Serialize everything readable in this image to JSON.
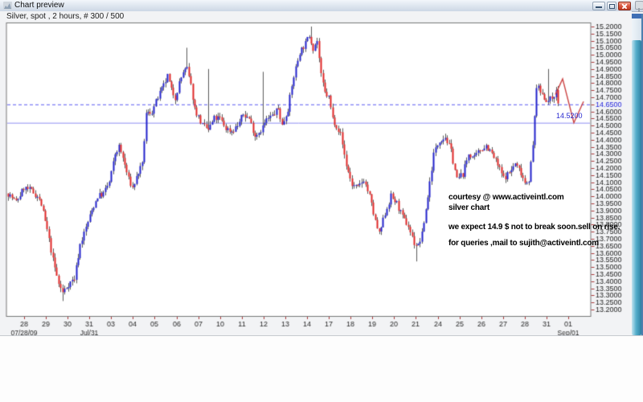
{
  "window": {
    "title": "Chart preview",
    "buttons": {
      "minimize": "minimize",
      "maximize": "maximize",
      "close": "close"
    }
  },
  "header": {
    "instrument_label": "Silver, spot , 2 hours, # 300 / 500"
  },
  "annotation": {
    "line1": "courtesy @ www.activeintl.com",
    "line2": "silver chart",
    "line3": "we expect 14.9 $ not to break soon.sell on rise.",
    "line4": "for queries ,mail to sujith@activeintl.com"
  },
  "chart_data": {
    "type": "candlestick",
    "title": "Silver, spot , 2 hours, # 300 / 500",
    "instrument": "Silver spot",
    "timeframe": "2 hours",
    "bars_counter": "# 300 / 500",
    "ylim": [
      13.2,
      15.2
    ],
    "y_tick_step": 0.05,
    "y_ticks": [
      "15.2000",
      "15.1500",
      "15.1000",
      "15.0500",
      "15.0000",
      "14.9500",
      "14.9000",
      "14.8500",
      "14.8000",
      "14.7500",
      "14.7000",
      "14.6500",
      "14.6000",
      "14.5500",
      "14.5000",
      "14.4500",
      "14.4000",
      "14.3500",
      "14.3000",
      "14.2500",
      "14.2000",
      "14.1500",
      "14.1000",
      "14.0500",
      "14.0000",
      "13.9500",
      "13.9000",
      "13.8500",
      "13.8000",
      "13.7500",
      "13.7000",
      "13.6500",
      "13.6000",
      "13.5500",
      "13.5000",
      "13.4500",
      "13.4000",
      "13.3500",
      "13.3000",
      "13.2500",
      "13.2000"
    ],
    "highlighted_y_tick": "14.6500",
    "x_labels": [
      {
        "label": "28",
        "sub": "07/28/09"
      },
      {
        "label": "29"
      },
      {
        "label": "30"
      },
      {
        "label": "31",
        "sub": "Jul/31"
      },
      {
        "label": "03"
      },
      {
        "label": "04"
      },
      {
        "label": "05"
      },
      {
        "label": "06"
      },
      {
        "label": "07"
      },
      {
        "label": "10"
      },
      {
        "label": "11"
      },
      {
        "label": "12"
      },
      {
        "label": "13"
      },
      {
        "label": "14"
      },
      {
        "label": "17"
      },
      {
        "label": "18"
      },
      {
        "label": "19"
      },
      {
        "label": "20"
      },
      {
        "label": "21"
      },
      {
        "label": "24"
      },
      {
        "label": "25"
      },
      {
        "label": "26"
      },
      {
        "label": "27"
      },
      {
        "label": "28"
      },
      {
        "label": "31"
      },
      {
        "label": "01",
        "sub": "Sep/01"
      }
    ],
    "levels": {
      "dashed_line_price": 14.65,
      "solid_line_price": 14.52,
      "solid_line_label": "14.5200"
    },
    "num_bars": 284,
    "waypoints": [
      [
        0,
        14.02
      ],
      [
        4,
        13.96
      ],
      [
        8,
        14.06
      ],
      [
        12,
        14.04
      ],
      [
        15,
        14.0
      ],
      [
        17,
        13.94
      ],
      [
        20,
        13.76
      ],
      [
        23,
        13.55
      ],
      [
        26,
        13.38
      ],
      [
        28,
        13.32
      ],
      [
        31,
        13.38
      ],
      [
        34,
        13.42
      ],
      [
        37,
        13.66
      ],
      [
        40,
        13.78
      ],
      [
        43,
        13.9
      ],
      [
        46,
        14.0
      ],
      [
        49,
        14.02
      ],
      [
        52,
        14.1
      ],
      [
        55,
        14.3
      ],
      [
        57,
        14.35
      ],
      [
        59,
        14.27
      ],
      [
        62,
        14.12
      ],
      [
        64,
        14.06
      ],
      [
        67,
        14.17
      ],
      [
        69,
        14.22
      ],
      [
        71,
        14.58
      ],
      [
        74,
        14.6
      ],
      [
        77,
        14.7
      ],
      [
        80,
        14.78
      ],
      [
        82,
        14.85
      ],
      [
        84,
        14.75
      ],
      [
        86,
        14.7
      ],
      [
        88,
        14.8
      ],
      [
        90,
        14.88
      ],
      [
        92,
        14.9
      ],
      [
        94,
        14.78
      ],
      [
        96,
        14.62
      ],
      [
        98,
        14.56
      ],
      [
        100,
        14.5
      ],
      [
        103,
        14.47
      ],
      [
        106,
        14.55
      ],
      [
        109,
        14.55
      ],
      [
        112,
        14.48
      ],
      [
        115,
        14.46
      ],
      [
        118,
        14.5
      ],
      [
        121,
        14.58
      ],
      [
        124,
        14.55
      ],
      [
        127,
        14.43
      ],
      [
        130,
        14.47
      ],
      [
        133,
        14.54
      ],
      [
        136,
        14.57
      ],
      [
        139,
        14.62
      ],
      [
        141,
        14.5
      ],
      [
        144,
        14.62
      ],
      [
        147,
        14.85
      ],
      [
        150,
        15.02
      ],
      [
        153,
        15.08
      ],
      [
        155,
        15.14
      ],
      [
        157,
        15.05
      ],
      [
        159,
        15.1
      ],
      [
        161,
        14.85
      ],
      [
        163,
        14.73
      ],
      [
        165,
        14.7
      ],
      [
        167,
        14.55
      ],
      [
        169,
        14.5
      ],
      [
        171,
        14.44
      ],
      [
        174,
        14.22
      ],
      [
        177,
        14.08
      ],
      [
        180,
        14.06
      ],
      [
        183,
        14.12
      ],
      [
        186,
        14.0
      ],
      [
        189,
        13.82
      ],
      [
        191,
        13.73
      ],
      [
        194,
        13.88
      ],
      [
        197,
        14.0
      ],
      [
        200,
        13.95
      ],
      [
        203,
        13.85
      ],
      [
        206,
        13.79
      ],
      [
        209,
        13.67
      ],
      [
        211,
        13.65
      ],
      [
        213,
        13.73
      ],
      [
        216,
        14.0
      ],
      [
        219,
        14.3
      ],
      [
        222,
        14.4
      ],
      [
        225,
        14.42
      ],
      [
        228,
        14.32
      ],
      [
        231,
        14.12
      ],
      [
        234,
        14.16
      ],
      [
        237,
        14.3
      ],
      [
        240,
        14.27
      ],
      [
        243,
        14.33
      ],
      [
        246,
        14.36
      ],
      [
        249,
        14.3
      ],
      [
        252,
        14.22
      ],
      [
        255,
        14.13
      ],
      [
        258,
        14.17
      ],
      [
        261,
        14.23
      ],
      [
        264,
        14.17
      ],
      [
        266,
        14.1
      ],
      [
        268,
        14.12
      ],
      [
        270,
        14.35
      ],
      [
        272,
        14.78
      ],
      [
        274,
        14.74
      ],
      [
        276,
        14.7
      ],
      [
        278,
        14.67
      ],
      [
        280,
        14.7
      ],
      [
        282,
        14.74
      ],
      [
        283,
        14.66
      ]
    ],
    "wick_overrides": [
      {
        "bar": 28,
        "low": 13.26
      },
      {
        "bar": 92,
        "high": 15.05
      },
      {
        "bar": 103,
        "high": 14.9
      },
      {
        "bar": 131,
        "high": 14.88
      },
      {
        "bar": 156,
        "high": 15.2
      },
      {
        "bar": 210,
        "low": 13.54
      },
      {
        "bar": 278,
        "high": 14.9
      }
    ],
    "projection_line": {
      "points": [
        [
          691,
          14.72
        ],
        [
          700,
          14.83
        ],
        [
          714,
          14.52
        ],
        [
          726,
          14.67
        ]
      ]
    },
    "colors": {
      "up": "#2222cc",
      "down": "#e02828",
      "wick": "#5a5a5a",
      "dashed_level": "#5a5af2",
      "solid_level": "#8f8ff2",
      "level_label": "#2a2ad0",
      "projection": "#cc4444",
      "axis_text": "#1a1a1a",
      "tick_mark": "#aa3a3a",
      "highlight_tick_text": "#2222dd",
      "plot_border": "#777777",
      "plot_bg": "#ffffff"
    },
    "legend_position": "none",
    "grid": false
  }
}
